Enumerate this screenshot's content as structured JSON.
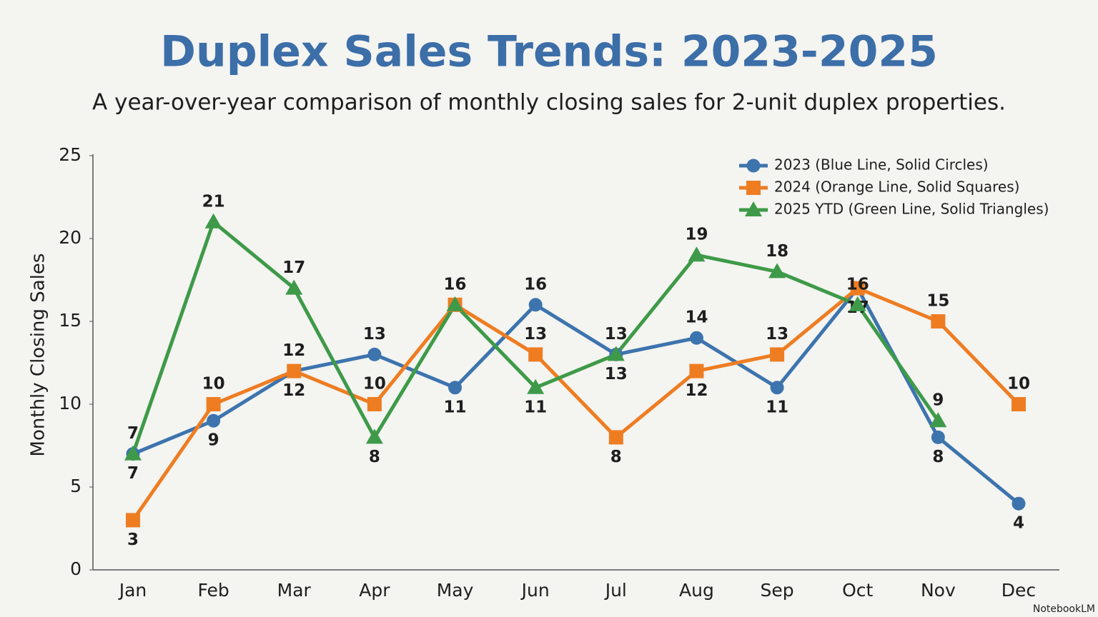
{
  "chart_data": {
    "type": "line",
    "title": "Duplex Sales Trends: 2023-2025",
    "subtitle": "A year-over-year comparison of monthly closing sales for 2-unit duplex properties.",
    "y_label": "Monthly Closing Sales",
    "categories": [
      "Jan",
      "Feb",
      "Mar",
      "Apr",
      "May",
      "Jun",
      "Jul",
      "Aug",
      "Sep",
      "Oct",
      "Nov",
      "Dec"
    ],
    "series": [
      {
        "name": "2023 (Blue Line, Solid Circles)",
        "color": "#3d74ad",
        "marker": "circle",
        "values": [
          7,
          9,
          12,
          13,
          11,
          16,
          13,
          14,
          11,
          17,
          8,
          4
        ]
      },
      {
        "name": "2024 (Orange Line, Solid Squares)",
        "color": "#ee7d22",
        "marker": "square",
        "values": [
          3,
          10,
          12,
          10,
          16,
          13,
          8,
          12,
          13,
          17,
          15,
          10
        ]
      },
      {
        "name": "2025 YTD (Green Line, Solid Triangles)",
        "color": "#3e9a48",
        "marker": "triangle",
        "values": [
          7,
          21,
          17,
          8,
          16,
          11,
          13,
          19,
          18,
          16,
          9,
          null
        ]
      }
    ],
    "ylim": [
      0,
      25
    ],
    "yticks": [
      0,
      5,
      10,
      15,
      20,
      25
    ],
    "grid": false,
    "legend": "upper right",
    "watermark": "NotebookLM"
  }
}
